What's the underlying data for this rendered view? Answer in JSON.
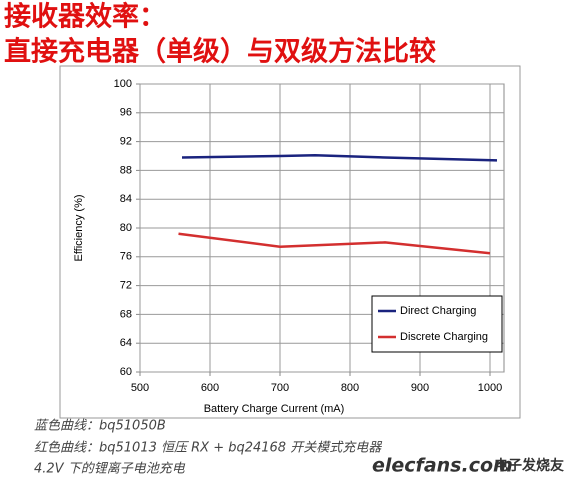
{
  "header": {
    "lines": [
      "接收器效率：",
      "直接充电器（单级）与双级方法比较"
    ]
  },
  "chart_data": {
    "type": "line",
    "x_label": "Battery Charge Current (mA)",
    "y_label": "Efficiency (%)",
    "xlim": [
      500,
      1020
    ],
    "ylim": [
      60,
      100
    ],
    "xticks": [
      500,
      600,
      700,
      800,
      900,
      1000
    ],
    "yticks": [
      60,
      64,
      68,
      72,
      76,
      80,
      84,
      88,
      92,
      96,
      100
    ],
    "grid": true,
    "legend": "lower-right",
    "series": [
      {
        "name": "Direct Charging",
        "color": "#1a237e",
        "x": [
          560,
          700,
          750,
          850,
          1010
        ],
        "values": [
          89.8,
          90.0,
          90.1,
          89.8,
          89.4
        ]
      },
      {
        "name": "Discrete Charging",
        "color": "#d32f2f",
        "x": [
          555,
          700,
          850,
          1000
        ],
        "values": [
          79.2,
          77.4,
          78.0,
          76.5
        ]
      }
    ]
  },
  "notes": [
    "蓝色曲线：bq51050B",
    "红色曲线：bq51013 恒压 RX + bq24168 开关模式充电器",
    "4.2V 下的锂离子电池充电"
  ],
  "watermark": {
    "site": "elecfans.com",
    "brand": "电子发烧友"
  }
}
